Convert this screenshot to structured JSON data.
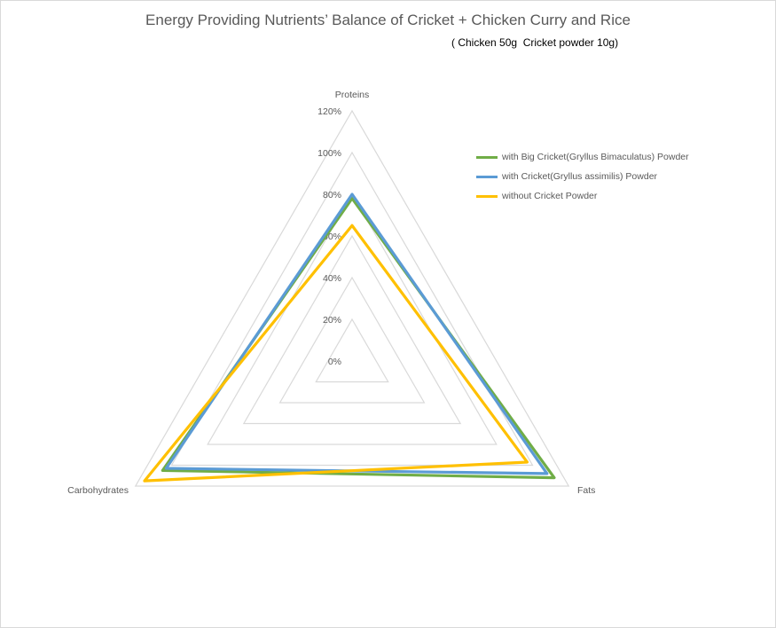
{
  "chart_data": {
    "type": "radar",
    "title": "Energy Providing Nutrients’ Balance of Cricket + Chicken Curry and Rice",
    "subtitle": "( Chicken 50g  Cricket powder 10g)",
    "axes": [
      "Proteins",
      "Fats",
      "Carbohydrates"
    ],
    "radial_ticks": [
      "0%",
      "20%",
      "40%",
      "60%",
      "80%",
      "100%",
      "120%"
    ],
    "radial_range": [
      0,
      120
    ],
    "grid": true,
    "legend_position": "right",
    "series": [
      {
        "name": "with Big Cricket(Gryllus Bimaculatus) Powder",
        "color": "#70ad47",
        "values": [
          78,
          112,
          105
        ]
      },
      {
        "name": "with Cricket(Gryllus assimilis) Powder",
        "color": "#5b9bd5",
        "values": [
          80,
          108,
          103
        ]
      },
      {
        "name": "without Cricket Powder",
        "color": "#ffc000",
        "values": [
          65,
          97,
          115
        ]
      }
    ]
  }
}
